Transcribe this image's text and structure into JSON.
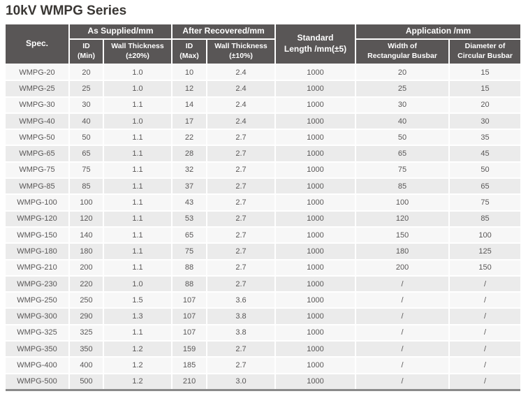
{
  "page": {
    "title": "10kV WMPG Series"
  },
  "table": {
    "headers": {
      "spec": "Spec.",
      "as_supplied": "As Supplied/mm",
      "after_recovered": "After Recovered/mm",
      "standard_length": "Standard\nLength /mm(±5)",
      "application": "Application /mm",
      "id_min": "ID\n(Min)",
      "wall_thickness_20": "Wall Thickness\n(±20%)",
      "id_max": "ID\n(Max)",
      "wall_thickness_10": "Wall Thickness\n(±10%)",
      "width_rectangular": "Width of\nRectangular Busbar",
      "diameter_circular": "Diameter of\nCircular Busbar"
    },
    "rows": [
      [
        "WMPG-20",
        "20",
        "1.0",
        "10",
        "2.4",
        "1000",
        "20",
        "15"
      ],
      [
        "WMPG-25",
        "25",
        "1.0",
        "12",
        "2.4",
        "1000",
        "25",
        "15"
      ],
      [
        "WMPG-30",
        "30",
        "1.1",
        "14",
        "2.4",
        "1000",
        "30",
        "20"
      ],
      [
        "WMPG-40",
        "40",
        "1.0",
        "17",
        "2.4",
        "1000",
        "40",
        "30"
      ],
      [
        "WMPG-50",
        "50",
        "1.1",
        "22",
        "2.7",
        "1000",
        "50",
        "35"
      ],
      [
        "WMPG-65",
        "65",
        "1.1",
        "28",
        "2.7",
        "1000",
        "65",
        "45"
      ],
      [
        "WMPG-75",
        "75",
        "1.1",
        "32",
        "2.7",
        "1000",
        "75",
        "50"
      ],
      [
        "WMPG-85",
        "85",
        "1.1",
        "37",
        "2.7",
        "1000",
        "85",
        "65"
      ],
      [
        "WMPG-100",
        "100",
        "1.1",
        "43",
        "2.7",
        "1000",
        "100",
        "75"
      ],
      [
        "WMPG-120",
        "120",
        "1.1",
        "53",
        "2.7",
        "1000",
        "120",
        "85"
      ],
      [
        "WMPG-150",
        "140",
        "1.1",
        "65",
        "2.7",
        "1000",
        "150",
        "100"
      ],
      [
        "WMPG-180",
        "180",
        "1.1",
        "75",
        "2.7",
        "1000",
        "180",
        "125"
      ],
      [
        "WMPG-210",
        "200",
        "1.1",
        "88",
        "2.7",
        "1000",
        "200",
        "150"
      ],
      [
        "WMPG-230",
        "220",
        "1.0",
        "88",
        "2.7",
        "1000",
        "/",
        "/"
      ],
      [
        "WMPG-250",
        "250",
        "1.5",
        "107",
        "3.6",
        "1000",
        "/",
        "/"
      ],
      [
        "WMPG-300",
        "290",
        "1.3",
        "107",
        "3.8",
        "1000",
        "/",
        "/"
      ],
      [
        "WMPG-325",
        "325",
        "1.1",
        "107",
        "3.8",
        "1000",
        "/",
        "/"
      ],
      [
        "WMPG-350",
        "350",
        "1.2",
        "159",
        "2.7",
        "1000",
        "/",
        "/"
      ],
      [
        "WMPG-400",
        "400",
        "1.2",
        "185",
        "2.7",
        "1000",
        "/",
        "/"
      ],
      [
        "WMPG-500",
        "500",
        "1.2",
        "210",
        "3.0",
        "1000",
        "/",
        "/"
      ]
    ],
    "colors": {
      "header_bg": "#595656",
      "header_text": "#ffffff",
      "row_odd_bg": "#f7f7f7",
      "row_even_bg": "#ebebeb",
      "body_text": "#595757",
      "title_text": "#3a3734",
      "table_bottom_border": "#8a8a8a"
    }
  }
}
